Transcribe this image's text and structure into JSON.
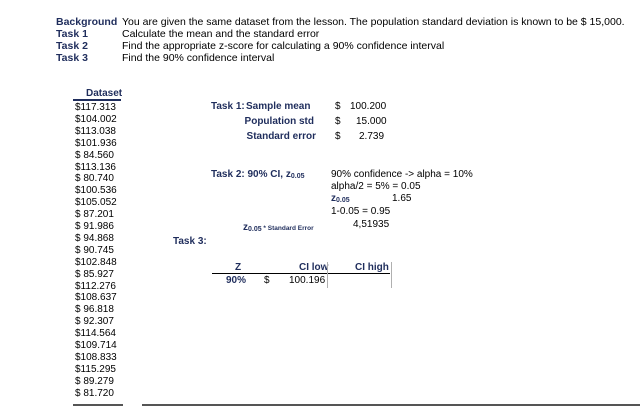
{
  "header": {
    "labels": [
      "Background",
      "Task 1",
      "Task 2",
      "Task 3"
    ],
    "texts": [
      "You are given the same dataset from the lesson. The population standard deviation is known to be $ 15,000.",
      "Calculate the mean and the standard error",
      "Find the appropriate z-score for calculating a 90% confidence interval",
      "Find the 90% confidence interval"
    ]
  },
  "dataset": {
    "title": "Dataset",
    "values": [
      "$117.313",
      "$104.002",
      "$113.038",
      "$101.936",
      "$ 84.560",
      "$113.136",
      "$ 80.740",
      "$100.536",
      "$105.052",
      "$ 87.201",
      "$ 91.986",
      "$ 94.868",
      "$ 90.745",
      "$102.848",
      "$ 85.927",
      "$112.276",
      "$108.637",
      "$ 96.818",
      "$ 92.307",
      "$114.564",
      "$109.714",
      "$108.833",
      "$115.295",
      "$ 89.279",
      "$ 81.720"
    ]
  },
  "task1": {
    "label": "Task 1:",
    "rows": [
      {
        "name": "Sample mean",
        "currency": "$",
        "value": "100.200"
      },
      {
        "name": "Population std",
        "currency": "$",
        "value": "15.000"
      },
      {
        "name": "Standard error",
        "currency": "$",
        "value": "2.739"
      }
    ]
  },
  "task2": {
    "label": "Task 2: 90% CI, z",
    "label_sub": "0.05",
    "notes": [
      "90% confidence -> alpha = 10%",
      "alpha/2 = 5% = 0.05"
    ],
    "z_label": "z",
    "z_sub": "0.05",
    "z_value": "1.65",
    "one_minus": "1-0.05 = 0.95",
    "result_value": "4,51935",
    "product_label_z": "z",
    "product_label_sub": "0.05",
    "product_label_rest": " * Standard Error"
  },
  "task3": {
    "label": "Task 3:",
    "headers": {
      "z": "Z",
      "ci_low": "CI low",
      "ci_high": "CI high"
    },
    "row": {
      "z": "90%",
      "currency": "$",
      "ci_low": "100.196",
      "ci_high": ""
    }
  }
}
